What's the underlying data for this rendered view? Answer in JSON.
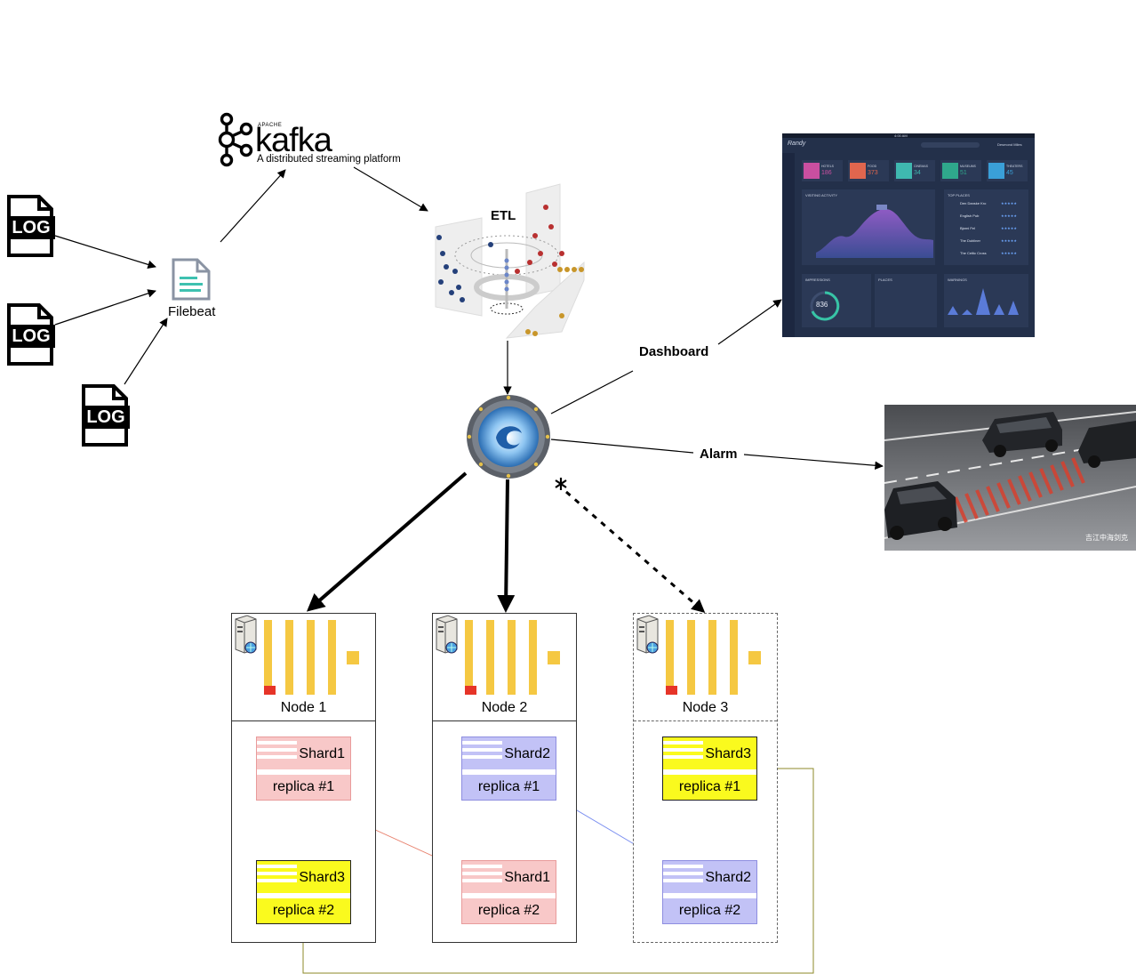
{
  "sources": {
    "log_label": "LOG",
    "filebeat_label": "Filebeat"
  },
  "kafka": {
    "apache": "APACHE",
    "name": "kafka",
    "tagline": "A distributed streaming platform"
  },
  "etl": {
    "label": "ETL"
  },
  "outputs": {
    "dashboard_label": "Dashboard",
    "alarm_label": "Alarm"
  },
  "dashboard_screen": {
    "brand": "Randy",
    "user": "Desmond Miles",
    "status_time": "4:00 AM",
    "stats": [
      {
        "label": "HOTELS",
        "value": "186",
        "color": "#c94fa0"
      },
      {
        "label": "FOOD",
        "value": "373",
        "color": "#e0664e"
      },
      {
        "label": "CINEMAS",
        "value": "34",
        "color": "#3fb8b0"
      },
      {
        "label": "MUSEUMS",
        "value": "51",
        "color": "#2fa88c"
      },
      {
        "label": "THEATERS",
        "value": "45",
        "color": "#3a9fd8"
      }
    ],
    "panel_visiting": "VISITING ACTIVITY",
    "panel_top_places": "TOP PLACES",
    "panel_impressions": "IMPRESSIONS",
    "panel_places": "PLACES",
    "panel_warnings": "WARNINGS",
    "impressions_value": "836",
    "top_places": [
      "Den Danske Kro",
      "English Pub",
      "Bjarni Fel",
      "The Dubliner",
      "The Celtic Cross"
    ]
  },
  "alarm_image": {
    "watermark": "吉江中海剑克"
  },
  "nodes": [
    {
      "title": "Node 1",
      "shards": [
        {
          "name": "Shard1",
          "replica": "replica #1",
          "color": "red"
        },
        {
          "name": "Shard3",
          "replica": "replica #2",
          "color": "yellow"
        }
      ]
    },
    {
      "title": "Node 2",
      "shards": [
        {
          "name": "Shard2",
          "replica": "replica #1",
          "color": "blue"
        },
        {
          "name": "Shard1",
          "replica": "replica #2",
          "color": "red"
        }
      ]
    },
    {
      "title": "Node 3",
      "shards": [
        {
          "name": "Shard3",
          "replica": "replica #1",
          "color": "yellow"
        },
        {
          "name": "Shard2",
          "replica": "replica #2",
          "color": "blue"
        }
      ]
    }
  ],
  "colors": {
    "shard_red": "#f8c8c8",
    "shard_blue": "#c2c2f6",
    "shard_yellow": "#fafa1e",
    "bar_yellow": "#f5c842",
    "red_link": "#e8826e",
    "blue_link": "#7a8ef0",
    "olive_link": "#8c8a2a"
  }
}
